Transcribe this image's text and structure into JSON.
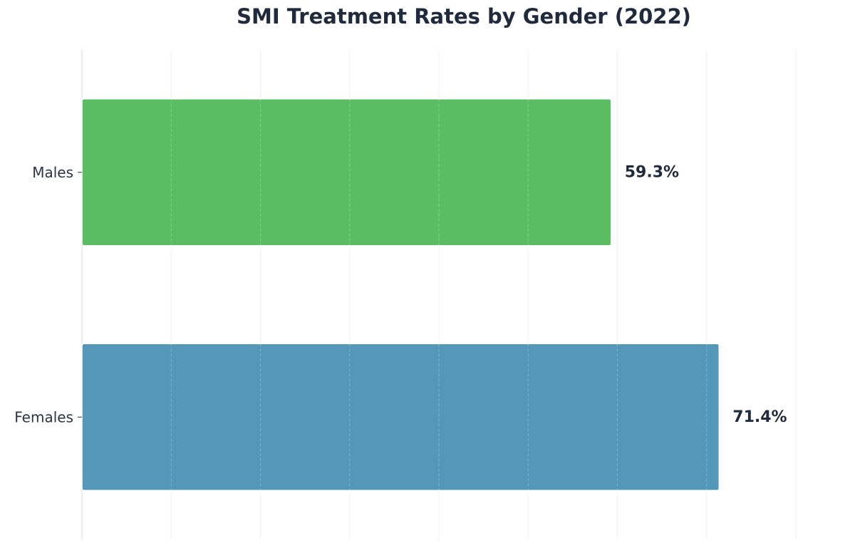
{
  "chart_data": {
    "type": "bar",
    "orientation": "horizontal",
    "title": "SMI Treatment Rates by Gender (2022)",
    "categories": [
      "Males",
      "Females"
    ],
    "values": [
      59.3,
      71.4
    ],
    "value_labels": [
      "59.3%",
      "71.4%"
    ],
    "colors": [
      "#5abd63",
      "#5597b8"
    ],
    "xlabel": "",
    "ylabel": "",
    "xlim": [
      0,
      80
    ],
    "grid": true,
    "legend": "none"
  }
}
